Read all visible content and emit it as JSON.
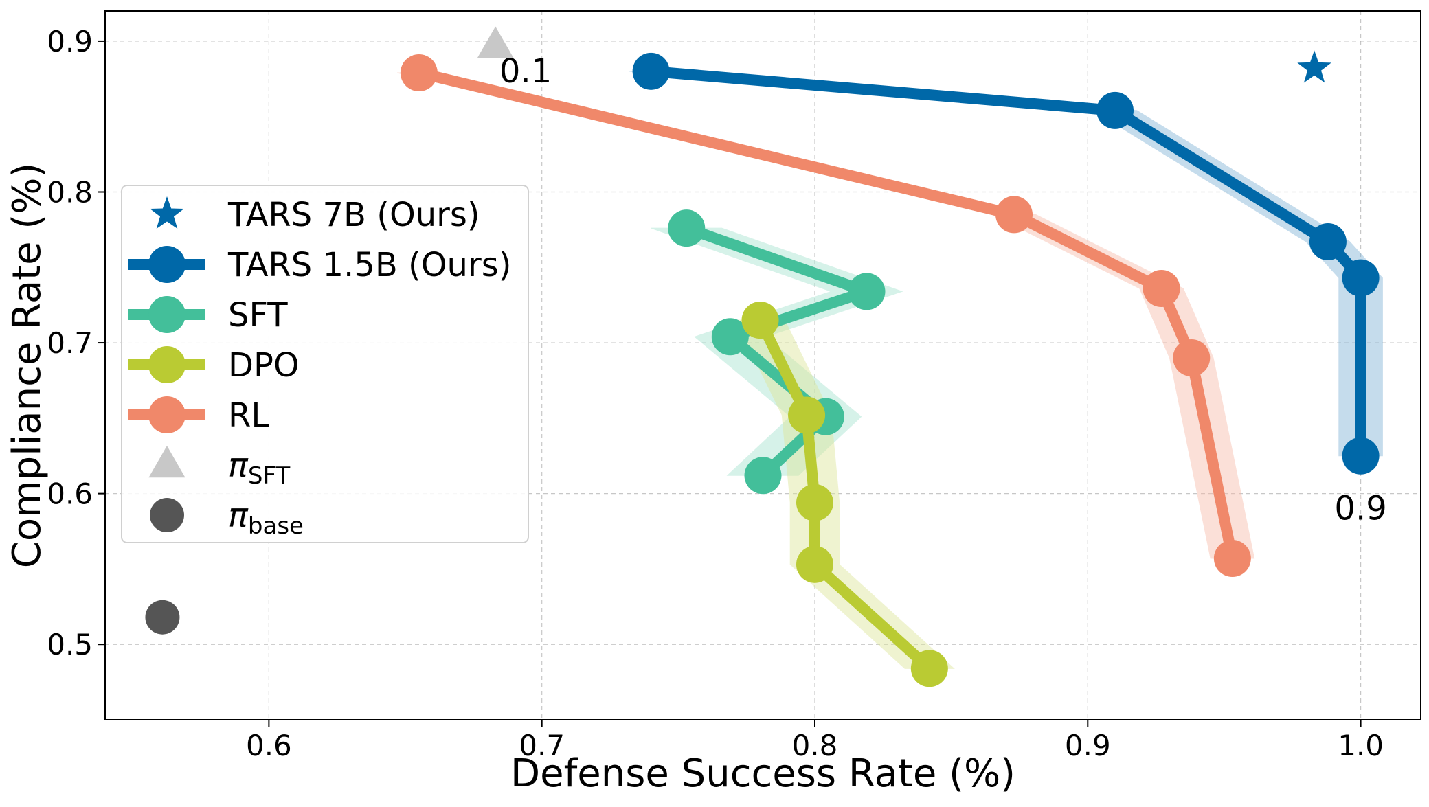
{
  "chart_data": {
    "type": "line",
    "title": "",
    "xlabel": "Defense Success Rate (%)",
    "ylabel": "Compliance Rate (%)",
    "xlim": [
      0.54,
      1.022
    ],
    "ylim": [
      0.45,
      0.92
    ],
    "grid": true,
    "legend_position": "center-left",
    "xticks": [
      0.6,
      0.7,
      0.8,
      0.9,
      1.0
    ],
    "xtick_labels": [
      "0.6",
      "0.7",
      "0.8",
      "0.9",
      "1.0"
    ],
    "yticks": [
      0.5,
      0.6,
      0.7,
      0.8,
      0.9
    ],
    "ytick_labels": [
      "0.5",
      "0.6",
      "0.7",
      "0.8",
      "0.9"
    ],
    "series": [
      {
        "name": "TARS 7B (Ours)",
        "kind": "marker",
        "marker": "star",
        "color": "#0068A8",
        "points": [
          [
            0.983,
            0.882
          ]
        ]
      },
      {
        "name": "TARS 1.5B (Ours)",
        "kind": "line",
        "color": "#0068A8",
        "band_color": "#7FB2D6",
        "band_width": 0.008,
        "points": [
          [
            0.74,
            0.88
          ],
          [
            0.91,
            0.854
          ],
          [
            0.988,
            0.767
          ],
          [
            1.0,
            0.743
          ],
          [
            1.0,
            0.625
          ]
        ]
      },
      {
        "name": "SFT",
        "kind": "line",
        "color": "#43BF9A",
        "band_color": "#A5E3CF",
        "band_width": 0.013,
        "points": [
          [
            0.753,
            0.776
          ],
          [
            0.819,
            0.734
          ],
          [
            0.769,
            0.704
          ],
          [
            0.804,
            0.651
          ],
          [
            0.781,
            0.612
          ]
        ]
      },
      {
        "name": "DPO",
        "kind": "line",
        "color": "#BACB33",
        "band_color": "#DDE699",
        "band_width": 0.009,
        "points": [
          [
            0.78,
            0.715
          ],
          [
            0.797,
            0.652
          ],
          [
            0.8,
            0.594
          ],
          [
            0.8,
            0.553
          ],
          [
            0.842,
            0.484
          ]
        ]
      },
      {
        "name": "RL",
        "kind": "line",
        "color": "#F0886A",
        "band_color": "#F8BBAA",
        "band_width": 0.008,
        "points": [
          [
            0.655,
            0.879
          ],
          [
            0.873,
            0.785
          ],
          [
            0.927,
            0.736
          ],
          [
            0.938,
            0.69
          ],
          [
            0.953,
            0.557
          ]
        ]
      },
      {
        "name": "π_SFT",
        "legend_main": "π",
        "legend_sub": "SFT",
        "kind": "marker",
        "marker": "triangle",
        "color": "#C8C8C8",
        "points": [
          [
            0.683,
            0.897
          ]
        ]
      },
      {
        "name": "π_base",
        "legend_main": "π",
        "legend_sub": "base",
        "kind": "marker",
        "marker": "circle",
        "color": "#555555",
        "points": [
          [
            0.561,
            0.518
          ]
        ]
      }
    ],
    "annotations": [
      {
        "text": "0.1",
        "x": 0.715,
        "y": 0.88
      },
      {
        "text": "0.9",
        "x": 1.0,
        "y": 0.59
      }
    ]
  }
}
